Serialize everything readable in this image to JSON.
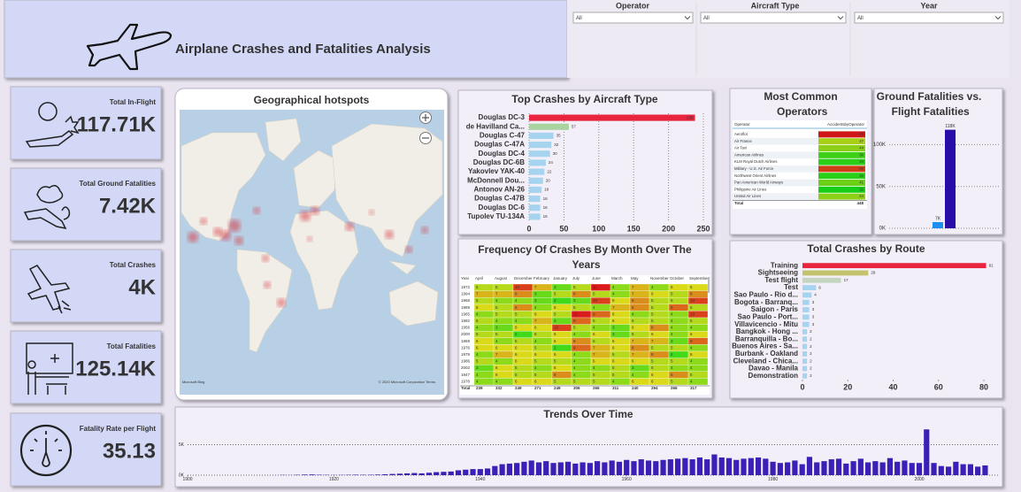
{
  "header": {
    "title": "Airplane Crashes and Fatalities Analysis"
  },
  "filters": [
    {
      "label": "Operator",
      "value": "All"
    },
    {
      "label": "Aircraft Type",
      "value": "All"
    },
    {
      "label": "Year",
      "value": "All"
    }
  ],
  "kpis": [
    {
      "label": "Total In-Flight",
      "value": "117.71K"
    },
    {
      "label": "Total Ground Fatalities",
      "value": "7.42K"
    },
    {
      "label": "Total Crashes",
      "value": "4K"
    },
    {
      "label": "Total Fatalities",
      "value": "125.14K"
    },
    {
      "label": "Fatality Rate per Flight",
      "value": "35.13"
    }
  ],
  "map": {
    "title": "Geographical hotspots",
    "logo": "Microsoft Bing",
    "attribution": "© 2020 Microsoft Corporation  Terms"
  },
  "chart_data": [
    {
      "type": "bar",
      "orientation": "horizontal",
      "title": "Top Crashes by Aircraft Type",
      "categories": [
        "Douglas DC-3",
        "de Havilland Ca...",
        "Douglas C-47",
        "Douglas C-47A",
        "Douglas DC-4",
        "Douglas DC-6B",
        "Yakovlev YAK-40",
        "McDonnell Dou...",
        "Antonov AN-26",
        "Douglas C-47B",
        "Douglas DC-6",
        "Tupolev TU-134A"
      ],
      "values": [
        238,
        57,
        35,
        32,
        30,
        24,
        22,
        20,
        18,
        16,
        16,
        16
      ],
      "colors": [
        "#e8243f",
        "#a9d3a0",
        "#a6d4ef",
        "#a6d4ef",
        "#a6d4ef",
        "#a6d4ef",
        "#a6d4ef",
        "#a6d4ef",
        "#a6d4ef",
        "#a6d4ef",
        "#a6d4ef",
        "#a6d4ef"
      ],
      "xlim": [
        0,
        250
      ],
      "xticks": [
        0,
        50,
        100,
        150,
        200,
        250
      ],
      "grid": true
    },
    {
      "type": "heatmap",
      "title": "Frequency Of Crashes By Month Over The Years",
      "row_header": "Year",
      "columns": [
        "April",
        "August",
        "December",
        "February",
        "January",
        "July",
        "June",
        "March",
        "May",
        "November",
        "October",
        "September"
      ],
      "categories": [
        "1972",
        "1994",
        "1968",
        "1989",
        "1965",
        "1992",
        "1956",
        "2000",
        "1969",
        "1976",
        "1979",
        "1986",
        "2002",
        "1947",
        "1978"
      ],
      "values": [
        [
          5,
          5,
          10,
          7,
          3,
          5,
          11,
          4,
          7,
          4,
          6,
          6
        ],
        [
          7,
          7,
          8,
          3,
          5,
          8,
          5,
          4,
          7,
          6,
          5,
          8
        ],
        [
          5,
          4,
          4,
          3,
          2,
          3,
          10,
          6,
          8,
          5,
          5,
          10
        ],
        [
          6,
          5,
          8,
          4,
          6,
          5,
          4,
          7,
          8,
          5,
          9,
          5
        ],
        [
          4,
          5,
          5,
          6,
          5,
          11,
          9,
          6,
          4,
          5,
          4,
          10
        ],
        [
          5,
          4,
          4,
          7,
          3,
          9,
          5,
          6,
          5,
          5,
          4,
          5
        ],
        [
          4,
          3,
          6,
          6,
          10,
          5,
          4,
          3,
          6,
          8,
          4,
          4
        ],
        [
          5,
          5,
          2,
          5,
          6,
          4,
          6,
          3,
          5,
          6,
          4,
          6
        ],
        [
          6,
          4,
          5,
          4,
          6,
          8,
          5,
          6,
          7,
          7,
          3,
          9
        ],
        [
          6,
          6,
          6,
          5,
          2,
          9,
          7,
          6,
          8,
          5,
          5,
          4
        ],
        [
          4,
          7,
          6,
          6,
          6,
          4,
          7,
          5,
          7,
          8,
          2,
          6
        ],
        [
          5,
          4,
          6,
          5,
          5,
          4,
          6,
          6,
          6,
          5,
          5,
          4
        ],
        [
          3,
          6,
          5,
          4,
          6,
          4,
          4,
          5,
          3,
          5,
          4,
          4
        ],
        [
          4,
          6,
          5,
          5,
          8,
          4,
          5,
          5,
          4,
          6,
          8,
          5
        ],
        [
          4,
          4,
          6,
          6,
          5,
          5,
          5,
          4,
          6,
          6,
          5,
          4
        ]
      ],
      "total_label": "Total",
      "totals": [
        239,
        332,
        249,
        271,
        249,
        306,
        266,
        311,
        240,
        294,
        266,
        317
      ]
    },
    {
      "type": "table",
      "title": "Most Common Operators",
      "columns": [
        "Operator",
        "AccidentsbyOperator"
      ],
      "categories": [
        "Aeroflot",
        "Air France",
        "Air Taxi",
        "American Airlines",
        "KLM Royal Dutch Airlines",
        "Military - U.S. Air Force",
        "Northwest Orient Airlines",
        "Pan American World Airways",
        "Philippine Air Lines",
        "United Air Lines"
      ],
      "values": [
        70,
        47,
        44,
        36,
        34,
        66,
        34,
        41,
        32,
        44
      ],
      "total_label": "Total",
      "total": 448
    },
    {
      "type": "bar",
      "title": "Ground Fatalities vs. Flight Fatalities",
      "categories": [
        null,
        null
      ],
      "values": [
        7420,
        117710
      ],
      "value_labels": [
        "7K",
        "118K"
      ],
      "colors": [
        "#1e8ff0",
        "#2a0ca8"
      ],
      "ylim": [
        0,
        130000
      ],
      "yticks": [
        {
          "value": 0,
          "label": "0K"
        },
        {
          "value": 50000,
          "label": "50K"
        },
        {
          "value": 100000,
          "label": "100K"
        }
      ],
      "grid": true
    },
    {
      "type": "bar",
      "orientation": "horizontal",
      "title": "Total Crashes by Route",
      "categories": [
        "Training",
        "Sightseeing",
        "Test flight",
        "Test",
        "Sao Paulo - Rio d...",
        "Bogota - Barranq...",
        "Saigon - Paris",
        "Sao Paulo - Port...",
        "Villavicencio - Mitu",
        "Bangkok - Hong ...",
        "Barranquilla - Bo...",
        "Buenos Aires - Sa...",
        "Burbank - Oakland",
        "Cleveland - Chica...",
        "Davao - Manila",
        "Demonstration"
      ],
      "values": [
        81,
        29,
        17,
        6,
        4,
        3,
        3,
        3,
        3,
        2,
        2,
        2,
        2,
        2,
        2,
        2
      ],
      "colors": [
        "#e8243f",
        "#c5c26c",
        "#c4d6bf",
        "#a6d4ef",
        "#a6d4ef",
        "#a6d4ef",
        "#a6d4ef",
        "#a6d4ef",
        "#a6d4ef",
        "#a6d4ef",
        "#a6d4ef",
        "#a6d4ef",
        "#a6d4ef",
        "#a6d4ef",
        "#a6d4ef",
        "#a6d4ef"
      ],
      "xlim": [
        0,
        85
      ],
      "xticks": [
        0,
        20,
        40,
        60,
        80
      ],
      "grid": false
    },
    {
      "type": "bar",
      "title": "Trends Over Time",
      "color": "#3b1fb6",
      "x": [
        1908,
        1909,
        1910,
        1911,
        1912,
        1913,
        1914,
        1915,
        1916,
        1917,
        1918,
        1919,
        1920,
        1921,
        1922,
        1923,
        1924,
        1925,
        1926,
        1927,
        1928,
        1929,
        1930,
        1931,
        1932,
        1933,
        1934,
        1935,
        1936,
        1937,
        1938,
        1939,
        1940,
        1941,
        1942,
        1943,
        1944,
        1945,
        1946,
        1947,
        1948,
        1949,
        1950,
        1951,
        1952,
        1953,
        1954,
        1955,
        1956,
        1957,
        1958,
        1959,
        1960,
        1961,
        1962,
        1963,
        1964,
        1965,
        1966,
        1967,
        1968,
        1969,
        1970,
        1971,
        1972,
        1973,
        1974,
        1975,
        1976,
        1977,
        1978,
        1979,
        1980,
        1981,
        1982,
        1983,
        1984,
        1985,
        1986,
        1987,
        1988,
        1989,
        1990,
        1991,
        1992,
        1993,
        1994,
        1995,
        1996,
        1997,
        1998,
        1999,
        2000,
        2001,
        2002,
        2003,
        2004,
        2005,
        2006,
        2007,
        2008,
        2009
      ],
      "values": [
        1,
        0,
        1,
        3,
        5,
        40,
        20,
        60,
        100,
        120,
        70,
        50,
        30,
        40,
        60,
        80,
        60,
        70,
        100,
        150,
        200,
        250,
        300,
        350,
        300,
        400,
        500,
        550,
        600,
        800,
        900,
        1000,
        1000,
        1100,
        1500,
        1800,
        1900,
        2000,
        2200,
        2400,
        2100,
        2300,
        2000,
        2100,
        2200,
        1900,
        2100,
        2000,
        2300,
        2100,
        2400,
        2200,
        2500,
        2300,
        2600,
        2400,
        2300,
        2500,
        2600,
        2700,
        2800,
        2600,
        2900,
        2600,
        3400,
        2900,
        2800,
        2500,
        2700,
        2800,
        2900,
        2700,
        2200,
        2000,
        2100,
        2400,
        1800,
        3000,
        2100,
        2300,
        2600,
        2700,
        1900,
        2300,
        2700,
        2100,
        2300,
        2100,
        2800,
        2200,
        2400,
        2000,
        2000,
        7500,
        2000,
        1500,
        1400,
        2200,
        1800,
        1800,
        1400,
        1600
      ],
      "xlim": [
        1900,
        2011
      ],
      "xticks": [
        1900,
        1920,
        1940,
        1960,
        1980,
        2000
      ],
      "ylim": [
        0,
        10000
      ],
      "yticks": [
        {
          "value": 0,
          "label": "0K"
        },
        {
          "value": 5000,
          "label": "5K"
        }
      ],
      "grid": true
    }
  ]
}
